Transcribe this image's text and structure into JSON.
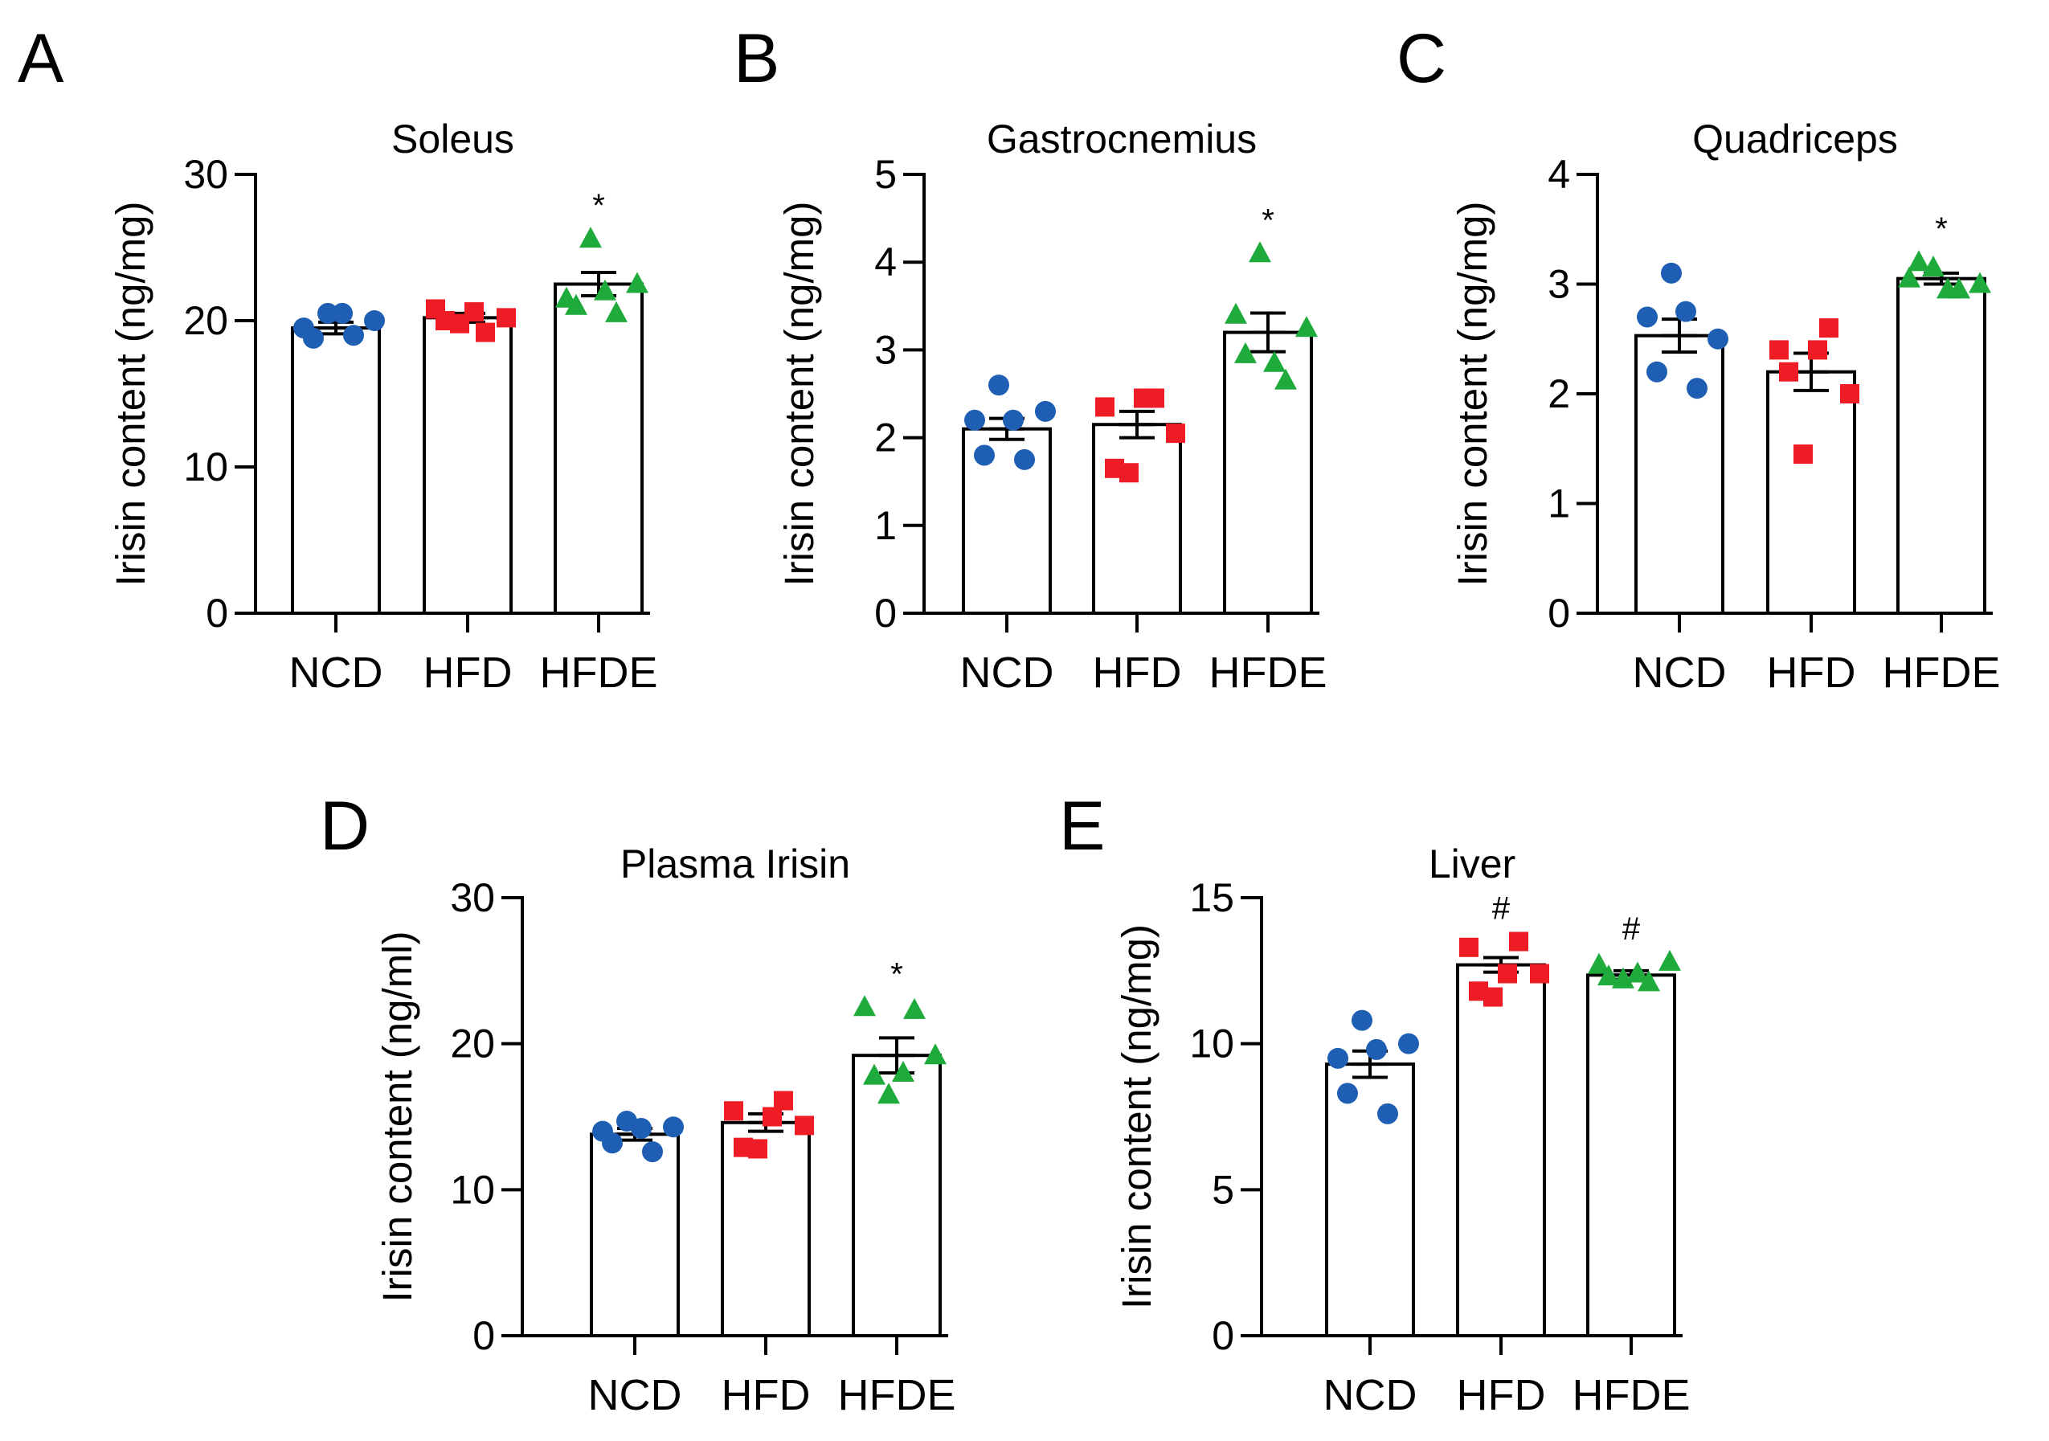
{
  "colors": {
    "NCD": "#1f5fb3",
    "HFD": "#ee1c24",
    "HFDE": "#1faa3c"
  },
  "markers": {
    "NCD": "circle",
    "HFD": "square",
    "HFDE": "triangle"
  },
  "chart_data": [
    {
      "panel": "A",
      "type": "bar",
      "title": "Soleus",
      "ylabel": "Irisin content (ng/mg)",
      "ylim": [
        0,
        30
      ],
      "yticks": [
        0,
        10,
        20,
        30
      ],
      "yticklabels": [
        "0",
        "10",
        "20",
        "30"
      ],
      "categories": [
        "NCD",
        "HFD",
        "HFDE"
      ],
      "means": [
        19.5,
        20.2,
        22.5
      ],
      "sem": [
        0.4,
        0.3,
        0.8
      ],
      "points": [
        [
          19.5,
          20.5,
          19.0,
          20.0,
          18.8,
          20.5
        ],
        [
          20.8,
          19.8,
          19.2,
          20.2,
          20.0,
          20.6
        ],
        [
          21.5,
          25.6,
          20.5,
          22.5,
          21.0,
          22.0
        ]
      ],
      "significance": [
        null,
        null,
        "*"
      ]
    },
    {
      "panel": "B",
      "type": "bar",
      "title": "Gastrocnemius",
      "ylabel": "Irisin content (ng/mg)",
      "ylim": [
        0,
        5
      ],
      "yticks": [
        0,
        1,
        2,
        3,
        4,
        5
      ],
      "yticklabels": [
        "0",
        "1",
        "2",
        "3",
        "4",
        "5"
      ],
      "categories": [
        "NCD",
        "HFD",
        "HFDE"
      ],
      "means": [
        2.1,
        2.15,
        3.2
      ],
      "sem": [
        0.12,
        0.15,
        0.22
      ],
      "points": [
        [
          2.2,
          2.6,
          1.75,
          2.3,
          1.8,
          2.2
        ],
        [
          2.35,
          1.6,
          2.45,
          2.05,
          1.65,
          2.45
        ],
        [
          3.4,
          4.1,
          2.65,
          3.25,
          2.95,
          2.85
        ]
      ],
      "significance": [
        null,
        null,
        "*"
      ]
    },
    {
      "panel": "C",
      "type": "bar",
      "title": "Quadriceps",
      "ylabel": "Irisin content (ng/mg)",
      "ylim": [
        0,
        4
      ],
      "yticks": [
        0,
        1,
        2,
        3,
        4
      ],
      "yticklabels": [
        "0",
        "1",
        "2",
        "3",
        "4"
      ],
      "categories": [
        "NCD",
        "HFD",
        "HFDE"
      ],
      "means": [
        2.53,
        2.2,
        3.05
      ],
      "sem": [
        0.15,
        0.17,
        0.05
      ],
      "points": [
        [
          2.7,
          3.1,
          2.05,
          2.5,
          2.2,
          2.75
        ],
        [
          2.4,
          1.45,
          2.6,
          2.0,
          2.2,
          2.4
        ],
        [
          3.05,
          3.15,
          2.95,
          3.0,
          3.2,
          2.95
        ]
      ],
      "significance": [
        null,
        null,
        "*"
      ]
    },
    {
      "panel": "D",
      "type": "bar",
      "title": "Plasma Irisin",
      "ylabel": "Irisin content (ng/ml)",
      "ylim": [
        0,
        30
      ],
      "yticks": [
        0,
        10,
        20,
        30
      ],
      "yticklabels": [
        "0",
        "10",
        "20",
        "30"
      ],
      "categories": [
        "NCD",
        "HFD",
        "HFDE"
      ],
      "means": [
        13.8,
        14.6,
        19.2
      ],
      "sem": [
        0.4,
        0.6,
        1.2
      ],
      "points": [
        [
          14.0,
          14.7,
          12.6,
          14.3,
          13.2,
          14.2
        ],
        [
          15.4,
          12.8,
          16.1,
          14.4,
          12.9,
          15.0
        ],
        [
          22.5,
          16.5,
          22.3,
          19.2,
          17.8,
          18.0
        ]
      ],
      "significance": [
        null,
        null,
        "*"
      ]
    },
    {
      "panel": "E",
      "type": "bar",
      "title": "Liver",
      "ylabel": "Irisin content (ng/mg)",
      "ylim": [
        0,
        15
      ],
      "yticks": [
        0,
        5,
        10,
        15
      ],
      "yticklabels": [
        "0",
        "5",
        "10",
        "15"
      ],
      "categories": [
        "NCD",
        "HFD",
        "HFDE"
      ],
      "means": [
        9.3,
        12.7,
        12.35
      ],
      "sem": [
        0.45,
        0.25,
        0.15
      ],
      "points": [
        [
          9.5,
          10.8,
          7.6,
          10.0,
          8.3,
          9.8
        ],
        [
          13.3,
          11.6,
          13.5,
          12.4,
          11.8,
          12.4
        ],
        [
          12.7,
          12.2,
          12.1,
          12.8,
          12.3,
          12.4
        ]
      ],
      "significance": [
        null,
        "#",
        "#"
      ]
    }
  ]
}
